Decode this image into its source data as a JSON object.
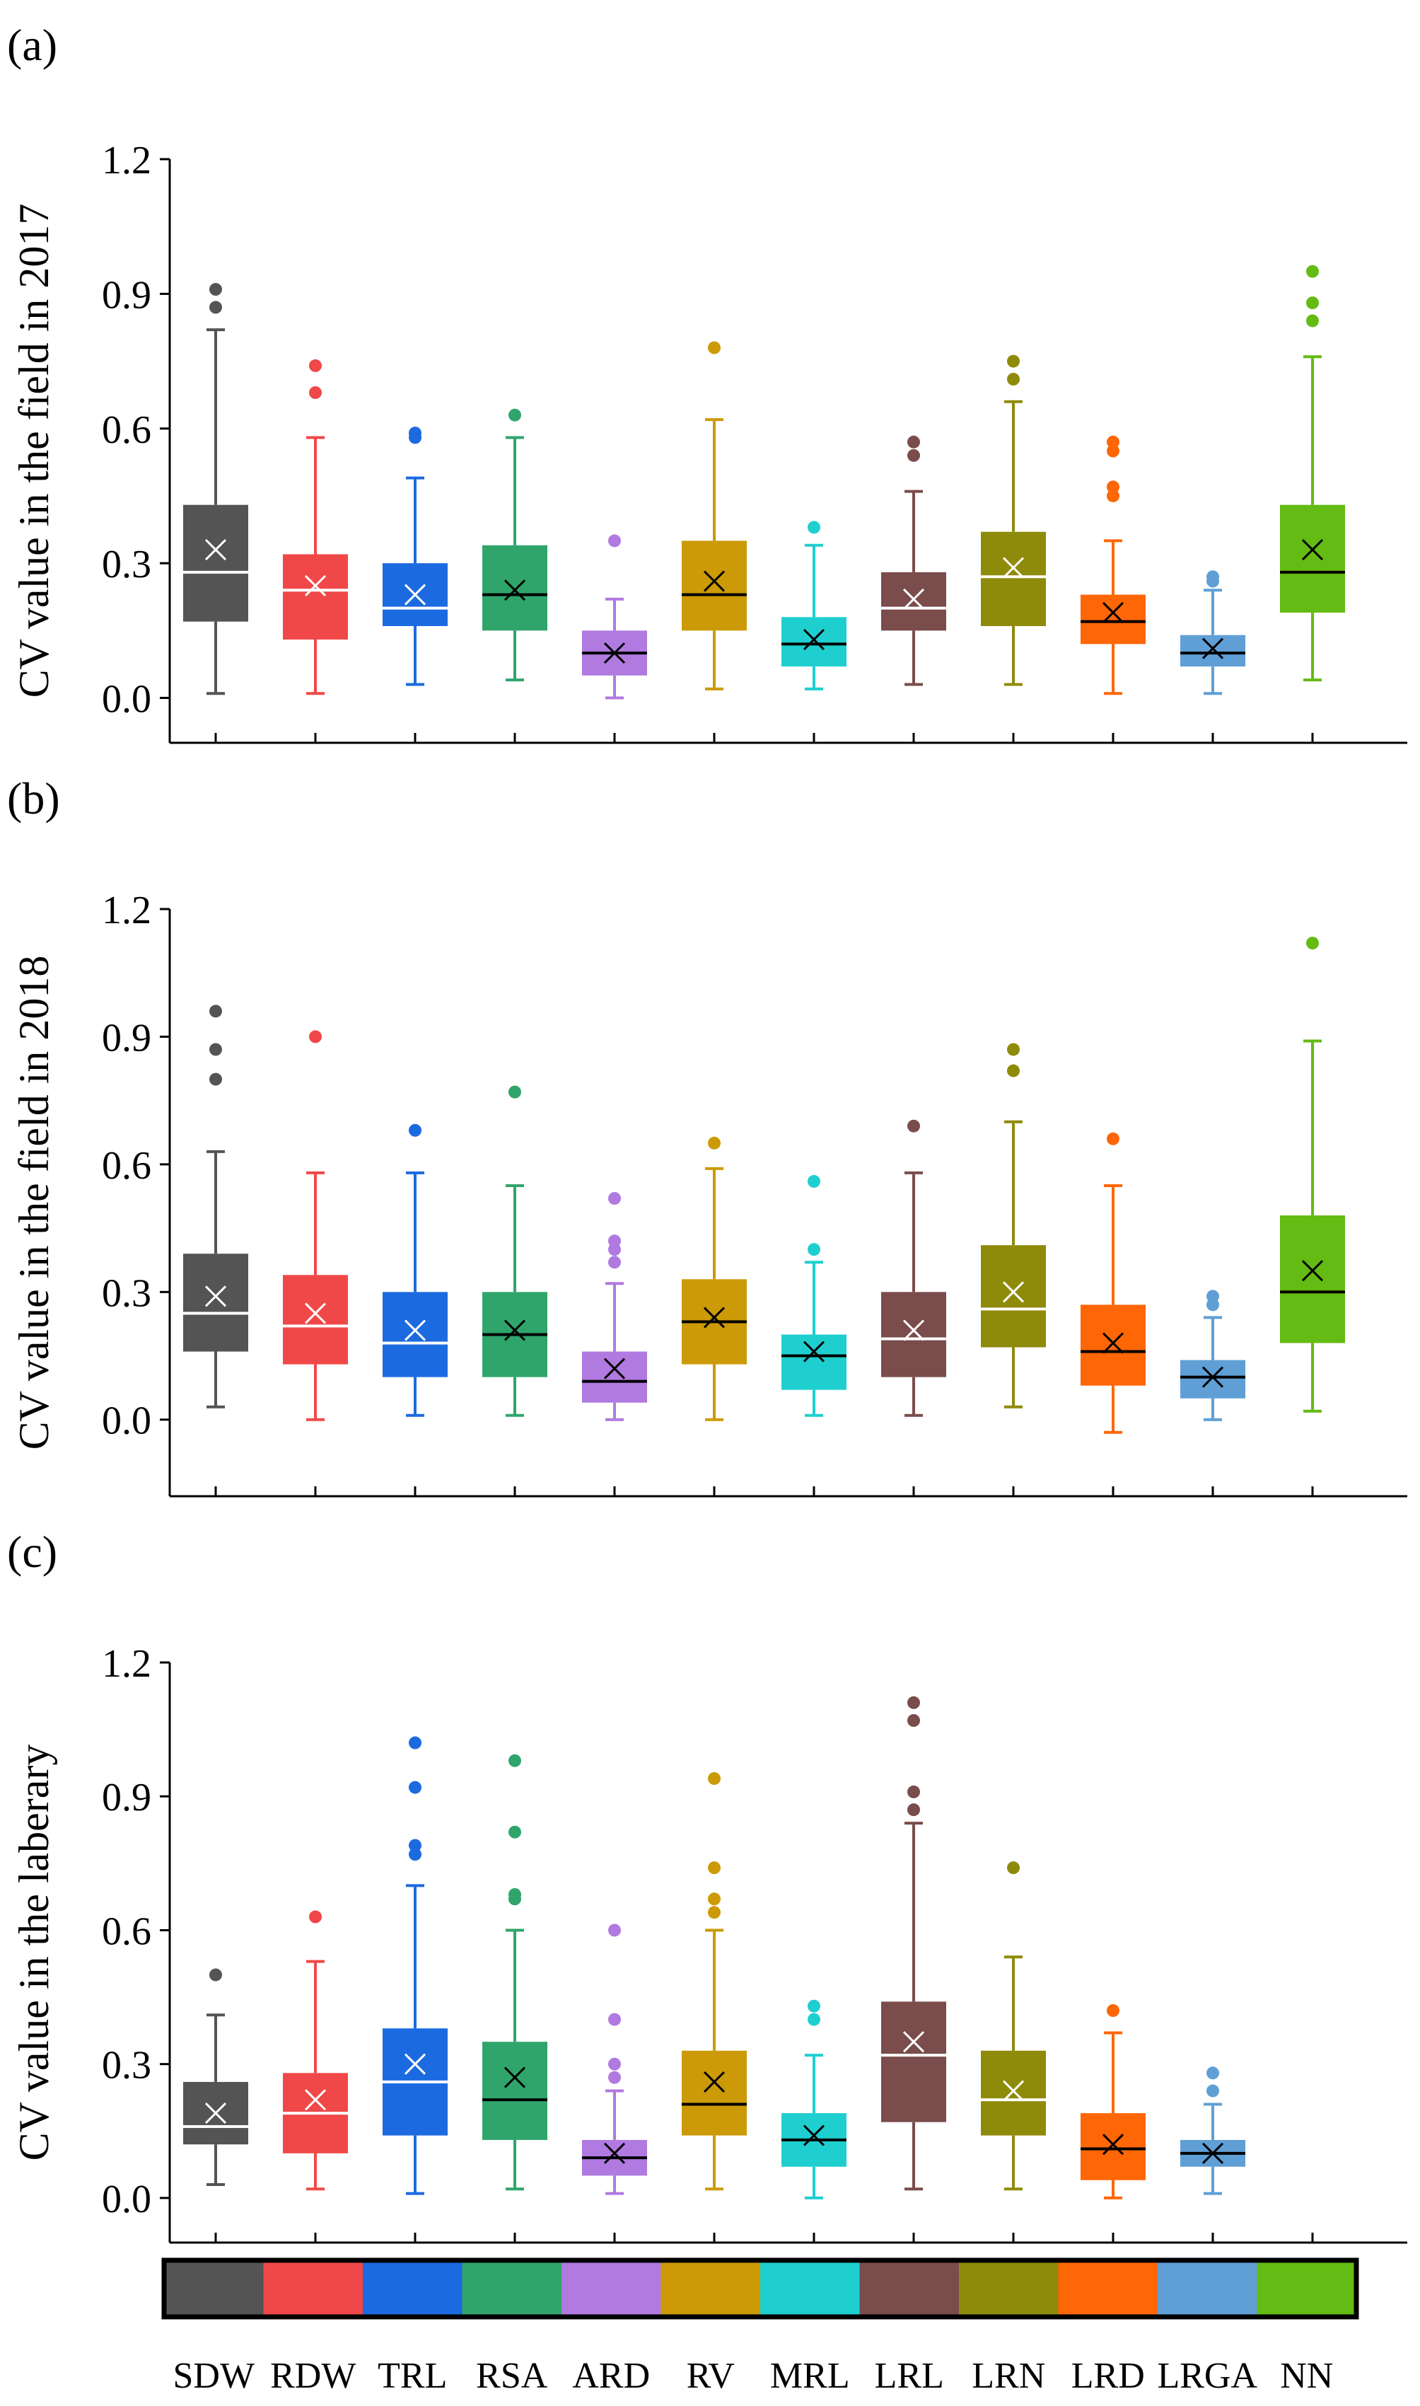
{
  "colors": {
    "SDW": "#545454",
    "RDW": "#f04848",
    "TRL": "#1c6ae0",
    "RSA": "#2fa56c",
    "ARD": "#b07ae0",
    "RV": "#cc9a06",
    "MRL": "#1fcfcf",
    "LRL": "#7a4c4c",
    "LRN": "#8f8b0a",
    "LRD": "#ff6606",
    "LRGA": "#5f9fd6",
    "NN": "#64bb13"
  },
  "categories": [
    "SDW",
    "RDW",
    "TRL",
    "RSA",
    "ARD",
    "RV",
    "MRL",
    "LRL",
    "LRN",
    "LRD",
    "LRGA",
    "NN"
  ],
  "chart_data": [
    {
      "type": "box",
      "panel_label": "(a)",
      "ylabel": "CV value in the field in 2017",
      "ylim": [
        -0.1,
        1.2
      ],
      "yticks": [
        "0.0",
        "0.3",
        "0.6",
        "0.9",
        "1.2"
      ],
      "boxes": [
        {
          "category": "SDW",
          "min": 0.01,
          "q1": 0.17,
          "median": 0.28,
          "q3": 0.43,
          "max": 0.82,
          "mean": 0.33,
          "outliers": [
            0.87,
            0.91
          ]
        },
        {
          "category": "RDW",
          "min": 0.01,
          "q1": 0.13,
          "median": 0.24,
          "q3": 0.32,
          "max": 0.58,
          "mean": 0.25,
          "outliers": [
            0.68,
            0.74
          ]
        },
        {
          "category": "TRL",
          "min": 0.03,
          "q1": 0.16,
          "median": 0.2,
          "q3": 0.3,
          "max": 0.49,
          "mean": 0.23,
          "outliers": [
            0.58,
            0.59
          ]
        },
        {
          "category": "RSA",
          "min": 0.04,
          "q1": 0.15,
          "median": 0.23,
          "q3": 0.34,
          "max": 0.58,
          "mean": 0.24,
          "outliers": [
            0.63
          ]
        },
        {
          "category": "ARD",
          "min": 0.0,
          "q1": 0.05,
          "median": 0.1,
          "q3": 0.15,
          "max": 0.22,
          "mean": 0.1,
          "outliers": [
            0.35
          ]
        },
        {
          "category": "RV",
          "min": 0.02,
          "q1": 0.15,
          "median": 0.23,
          "q3": 0.35,
          "max": 0.62,
          "mean": 0.26,
          "outliers": [
            0.78
          ]
        },
        {
          "category": "MRL",
          "min": 0.02,
          "q1": 0.07,
          "median": 0.12,
          "q3": 0.18,
          "max": 0.34,
          "mean": 0.13,
          "outliers": [
            0.38
          ]
        },
        {
          "category": "LRL",
          "min": 0.03,
          "q1": 0.15,
          "median": 0.2,
          "q3": 0.28,
          "max": 0.46,
          "mean": 0.22,
          "outliers": [
            0.54,
            0.57
          ]
        },
        {
          "category": "LRN",
          "min": 0.03,
          "q1": 0.16,
          "median": 0.27,
          "q3": 0.37,
          "max": 0.66,
          "mean": 0.29,
          "outliers": [
            0.71,
            0.75
          ]
        },
        {
          "category": "LRD",
          "min": 0.01,
          "q1": 0.12,
          "median": 0.17,
          "q3": 0.23,
          "max": 0.35,
          "mean": 0.19,
          "outliers": [
            0.45,
            0.47,
            0.55,
            0.57
          ]
        },
        {
          "category": "LRGA",
          "min": 0.01,
          "q1": 0.07,
          "median": 0.1,
          "q3": 0.14,
          "max": 0.24,
          "mean": 0.11,
          "outliers": [
            0.26,
            0.27
          ]
        },
        {
          "category": "NN",
          "min": 0.04,
          "q1": 0.19,
          "median": 0.28,
          "q3": 0.43,
          "max": 0.76,
          "mean": 0.33,
          "outliers": [
            0.84,
            0.88,
            0.95
          ]
        }
      ]
    },
    {
      "type": "box",
      "panel_label": "(b)",
      "ylabel": "CV value in the field in 2018",
      "ylim": [
        -0.18,
        1.2
      ],
      "yticks": [
        "0.0",
        "0.3",
        "0.6",
        "0.9",
        "1.2"
      ],
      "boxes": [
        {
          "category": "SDW",
          "min": 0.03,
          "q1": 0.16,
          "median": 0.25,
          "q3": 0.39,
          "max": 0.63,
          "mean": 0.29,
          "outliers": [
            0.8,
            0.87,
            0.96
          ]
        },
        {
          "category": "RDW",
          "min": 0.0,
          "q1": 0.13,
          "median": 0.22,
          "q3": 0.34,
          "max": 0.58,
          "mean": 0.25,
          "outliers": [
            0.9
          ]
        },
        {
          "category": "TRL",
          "min": 0.01,
          "q1": 0.1,
          "median": 0.18,
          "q3": 0.3,
          "max": 0.58,
          "mean": 0.21,
          "outliers": [
            0.68
          ]
        },
        {
          "category": "RSA",
          "min": 0.01,
          "q1": 0.1,
          "median": 0.2,
          "q3": 0.3,
          "max": 0.55,
          "mean": 0.21,
          "outliers": [
            0.77
          ]
        },
        {
          "category": "ARD",
          "min": 0.0,
          "q1": 0.04,
          "median": 0.09,
          "q3": 0.16,
          "max": 0.32,
          "mean": 0.12,
          "outliers": [
            0.37,
            0.4,
            0.42,
            0.52
          ]
        },
        {
          "category": "RV",
          "min": 0.0,
          "q1": 0.13,
          "median": 0.23,
          "q3": 0.33,
          "max": 0.59,
          "mean": 0.24,
          "outliers": [
            0.65
          ]
        },
        {
          "category": "MRL",
          "min": 0.01,
          "q1": 0.07,
          "median": 0.15,
          "q3": 0.2,
          "max": 0.37,
          "mean": 0.16,
          "outliers": [
            0.4,
            0.56
          ]
        },
        {
          "category": "LRL",
          "min": 0.01,
          "q1": 0.1,
          "median": 0.19,
          "q3": 0.3,
          "max": 0.58,
          "mean": 0.21,
          "outliers": [
            0.69
          ]
        },
        {
          "category": "LRN",
          "min": 0.03,
          "q1": 0.17,
          "median": 0.26,
          "q3": 0.41,
          "max": 0.7,
          "mean": 0.3,
          "outliers": [
            0.82,
            0.87
          ]
        },
        {
          "category": "LRD",
          "min": -0.03,
          "q1": 0.08,
          "median": 0.16,
          "q3": 0.27,
          "max": 0.55,
          "mean": 0.18,
          "outliers": [
            0.66
          ]
        },
        {
          "category": "LRGA",
          "min": 0.0,
          "q1": 0.05,
          "median": 0.1,
          "q3": 0.14,
          "max": 0.24,
          "mean": 0.1,
          "outliers": [
            0.27,
            0.29
          ]
        },
        {
          "category": "NN",
          "min": 0.02,
          "q1": 0.18,
          "median": 0.3,
          "q3": 0.48,
          "max": 0.89,
          "mean": 0.35,
          "outliers": [
            1.12
          ]
        }
      ]
    },
    {
      "type": "box",
      "panel_label": "(c)",
      "ylabel": "CV value in the laberary",
      "ylim": [
        -0.1,
        1.2
      ],
      "yticks": [
        "0.0",
        "0.3",
        "0.6",
        "0.9",
        "1.2"
      ],
      "boxes": [
        {
          "category": "SDW",
          "min": 0.03,
          "q1": 0.12,
          "median": 0.16,
          "q3": 0.26,
          "max": 0.41,
          "mean": 0.19,
          "outliers": [
            0.5
          ]
        },
        {
          "category": "RDW",
          "min": 0.02,
          "q1": 0.1,
          "median": 0.19,
          "q3": 0.28,
          "max": 0.53,
          "mean": 0.22,
          "outliers": [
            0.63
          ]
        },
        {
          "category": "TRL",
          "min": 0.01,
          "q1": 0.14,
          "median": 0.26,
          "q3": 0.38,
          "max": 0.7,
          "mean": 0.3,
          "outliers": [
            0.77,
            0.79,
            0.92,
            1.02
          ]
        },
        {
          "category": "RSA",
          "min": 0.02,
          "q1": 0.13,
          "median": 0.22,
          "q3": 0.35,
          "max": 0.6,
          "mean": 0.27,
          "outliers": [
            0.67,
            0.68,
            0.82,
            0.98
          ]
        },
        {
          "category": "ARD",
          "min": 0.01,
          "q1": 0.05,
          "median": 0.09,
          "q3": 0.13,
          "max": 0.24,
          "mean": 0.1,
          "outliers": [
            0.27,
            0.3,
            0.4,
            0.6
          ]
        },
        {
          "category": "RV",
          "min": 0.02,
          "q1": 0.14,
          "median": 0.21,
          "q3": 0.33,
          "max": 0.6,
          "mean": 0.26,
          "outliers": [
            0.64,
            0.67,
            0.74,
            0.94
          ]
        },
        {
          "category": "MRL",
          "min": 0.0,
          "q1": 0.07,
          "median": 0.13,
          "q3": 0.19,
          "max": 0.32,
          "mean": 0.14,
          "outliers": [
            0.4,
            0.43
          ]
        },
        {
          "category": "LRL",
          "min": 0.02,
          "q1": 0.17,
          "median": 0.32,
          "q3": 0.44,
          "max": 0.84,
          "mean": 0.35,
          "outliers": [
            0.87,
            0.91,
            1.07,
            1.11
          ]
        },
        {
          "category": "LRN",
          "min": 0.02,
          "q1": 0.14,
          "median": 0.22,
          "q3": 0.33,
          "max": 0.54,
          "mean": 0.24,
          "outliers": [
            0.74
          ]
        },
        {
          "category": "LRD",
          "min": 0.0,
          "q1": 0.04,
          "median": 0.11,
          "q3": 0.19,
          "max": 0.37,
          "mean": 0.12,
          "outliers": [
            0.42
          ]
        },
        {
          "category": "LRGA",
          "min": 0.01,
          "q1": 0.07,
          "median": 0.1,
          "q3": 0.13,
          "max": 0.21,
          "mean": 0.1,
          "outliers": [
            0.24,
            0.28
          ]
        }
      ]
    }
  ]
}
